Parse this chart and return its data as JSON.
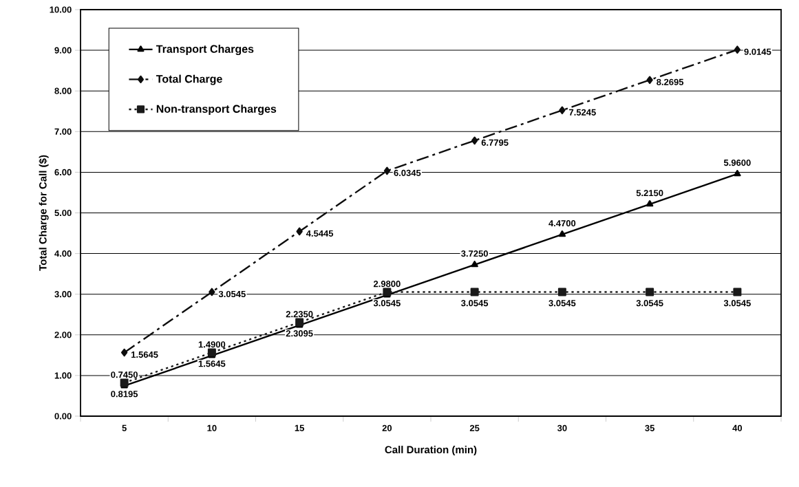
{
  "chart_data": {
    "type": "line",
    "xlabel": "Call Duration (min)",
    "ylabel": "Total Charge for Call ($)",
    "categories": [
      "5",
      "10",
      "15",
      "20",
      "25",
      "30",
      "35",
      "40"
    ],
    "ylim": [
      0,
      10
    ],
    "yticks": [
      {
        "value": 0,
        "label": "0.00"
      },
      {
        "value": 1,
        "label": "1.00"
      },
      {
        "value": 2,
        "label": "2.00"
      },
      {
        "value": 3,
        "label": "3.00"
      },
      {
        "value": 4,
        "label": "4.00"
      },
      {
        "value": 5,
        "label": "5.00"
      },
      {
        "value": 6,
        "label": "6.00"
      },
      {
        "value": 7,
        "label": "7.00"
      },
      {
        "value": 8,
        "label": "8.00"
      },
      {
        "value": 9,
        "label": "9.00"
      },
      {
        "value": 10,
        "label": "10.00"
      }
    ],
    "grid": "y",
    "legend": "top left",
    "series": [
      {
        "name": "Transport Charges",
        "color": "#000000",
        "marker": "triangle",
        "line_style": "solid",
        "values": [
          0.745,
          1.49,
          2.235,
          2.98,
          3.725,
          4.47,
          5.215,
          5.96
        ],
        "value_labels": [
          "0.7450",
          "1.4900",
          "2.2350",
          "2.9800",
          "3.7250",
          "4.4700",
          "5.2150",
          "5.9600"
        ]
      },
      {
        "name": "Total Charge",
        "color": "#0d0d0d",
        "marker": "diamond",
        "line_style": "dashed",
        "values": [
          1.5645,
          3.0545,
          4.5445,
          6.0345,
          6.7795,
          7.5245,
          8.2695,
          9.0145
        ],
        "value_labels": [
          "1.5645",
          "3.0545",
          "4.5445",
          "6.0345",
          "6.7795",
          "7.5245",
          "8.2695",
          "9.0145"
        ]
      },
      {
        "name": "Non-transport Charges",
        "color": "#1a1a1a",
        "marker": "square",
        "line_style": "dotted",
        "values": [
          0.8195,
          1.5645,
          2.3095,
          3.0545,
          3.0545,
          3.0545,
          3.0545,
          3.0545
        ],
        "value_labels": [
          "0.8195",
          "1.5645",
          "2.3095",
          "3.0545",
          "3.0545",
          "3.0545",
          "3.0545",
          "3.0545"
        ]
      }
    ]
  }
}
